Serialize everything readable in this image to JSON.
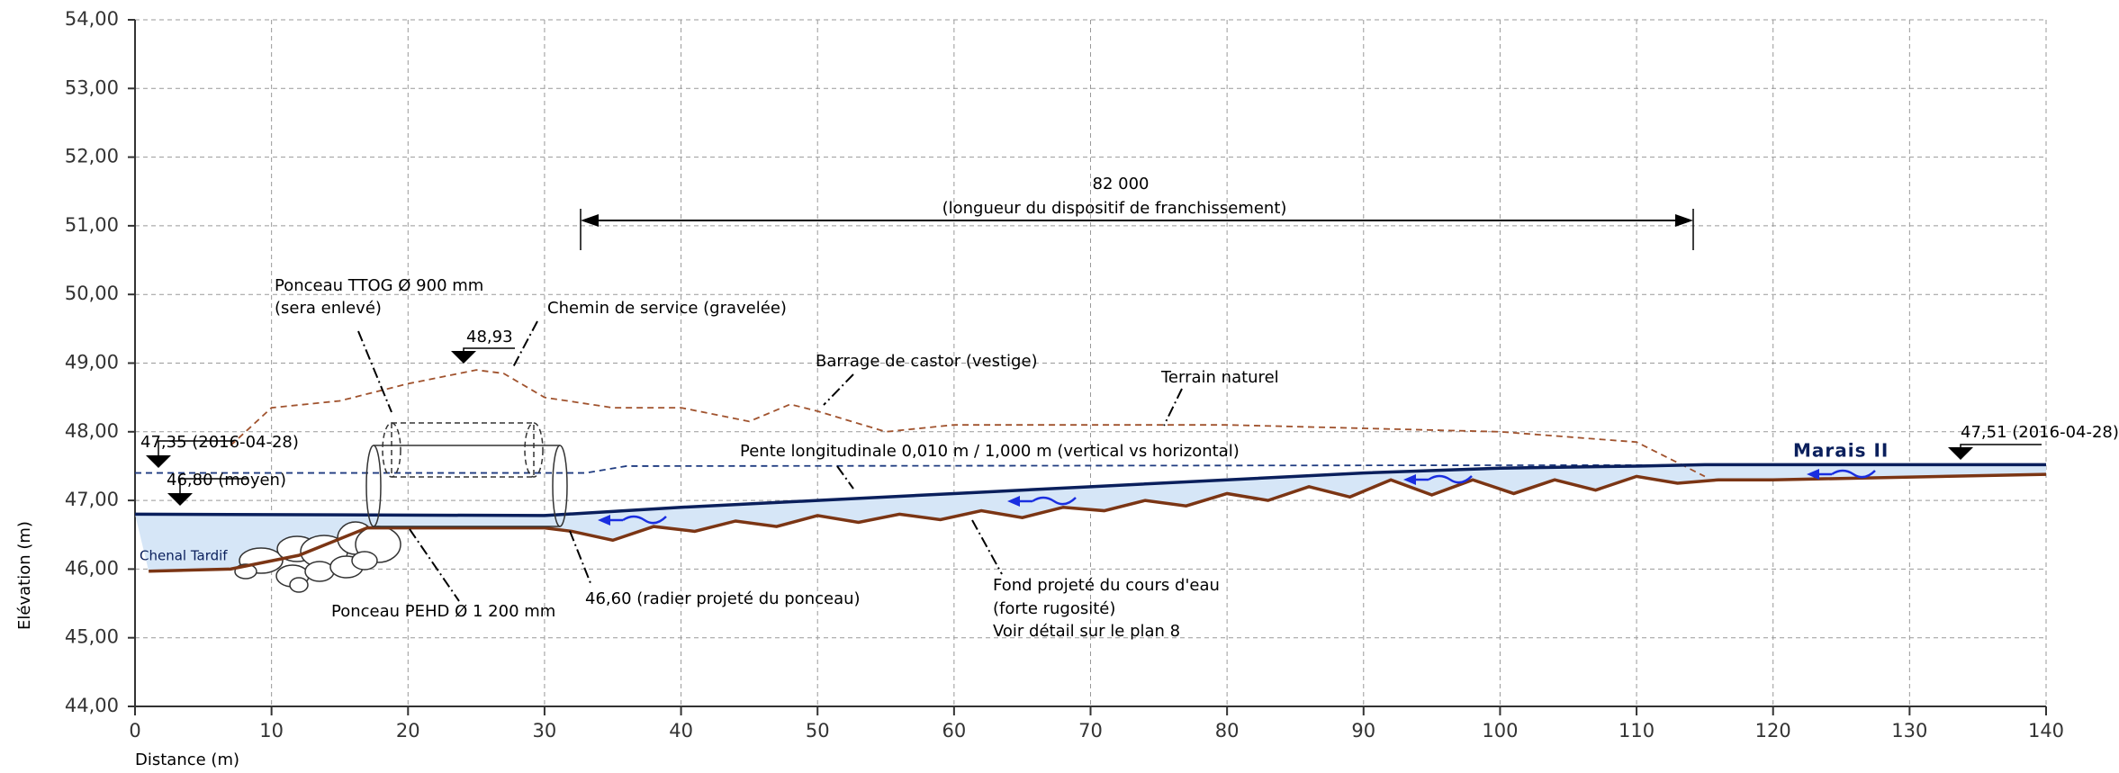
{
  "chart_data": {
    "type": "line",
    "xlabel": "Distance (m)",
    "ylabel": "Elévation (m)",
    "xlim": [
      0,
      140
    ],
    "ylim": [
      44,
      54
    ],
    "xticks": [
      0,
      10,
      20,
      30,
      40,
      50,
      60,
      70,
      80,
      90,
      100,
      110,
      120,
      130,
      140
    ],
    "yticks": [
      {
        "value": 44,
        "label": "44,00"
      },
      {
        "value": 45,
        "label": "45,00"
      },
      {
        "value": 46,
        "label": "46,00"
      },
      {
        "value": 47,
        "label": "47,00"
      },
      {
        "value": 48,
        "label": "48,00"
      },
      {
        "value": 49,
        "label": "49,00"
      },
      {
        "value": 50,
        "label": "50,00"
      },
      {
        "value": 51,
        "label": "51,00"
      },
      {
        "value": 52,
        "label": "52,00"
      },
      {
        "value": 53,
        "label": "53,00"
      },
      {
        "value": 54,
        "label": "54,00"
      }
    ],
    "grid": true,
    "series": [
      {
        "color": "#a0522d",
        "linestyle": "dashed",
        "x": [
          7,
          10,
          15,
          20,
          25,
          27,
          30,
          35,
          40,
          45,
          48,
          50,
          55,
          60,
          70,
          80,
          90,
          100,
          110,
          115
        ],
        "values": [
          47.8,
          48.35,
          48.45,
          48.7,
          48.9,
          48.85,
          48.5,
          48.35,
          48.35,
          48.15,
          48.4,
          48.3,
          48.0,
          48.1,
          48.1,
          48.1,
          48.05,
          48.0,
          47.85,
          47.35
        ]
      },
      {
        "color": "#1f3b80",
        "linestyle": "dashed",
        "x": [
          0,
          33,
          36,
          140
        ],
        "values": [
          47.4,
          47.4,
          47.5,
          47.52
        ]
      },
      {
        "color": "#0a1f5c",
        "linestyle": "solid",
        "x": [
          0,
          30,
          40,
          50,
          60,
          70,
          80,
          90,
          100,
          110,
          115,
          140
        ],
        "values": [
          46.8,
          46.78,
          46.9,
          47.0,
          47.1,
          47.2,
          47.3,
          47.4,
          47.47,
          47.5,
          47.52,
          47.52
        ]
      },
      {
        "color": "#7b3514",
        "linestyle": "solid",
        "x": [
          1,
          7,
          12,
          17,
          20,
          30,
          32,
          35,
          38,
          41,
          44,
          47,
          50,
          53,
          56,
          59,
          62,
          65,
          68,
          71,
          74,
          77,
          80,
          83,
          86,
          89,
          92,
          95,
          98,
          101,
          104,
          107,
          110,
          113,
          116,
          120,
          140
        ],
        "values": [
          45.97,
          46.0,
          46.2,
          46.6,
          46.6,
          46.6,
          46.55,
          46.42,
          46.62,
          46.55,
          46.7,
          46.62,
          46.78,
          46.68,
          46.8,
          46.72,
          46.85,
          46.75,
          46.9,
          46.85,
          47.0,
          46.92,
          47.1,
          47.0,
          47.2,
          47.05,
          47.3,
          47.08,
          47.3,
          47.1,
          47.3,
          47.15,
          47.35,
          47.25,
          47.3,
          47.3,
          47.38
        ]
      }
    ],
    "annotations": [
      "82 000",
      "(longueur du dispositif de franchissement)",
      "Ponceau TTOG Ø 900 mm",
      "(sera enlevé)",
      "Chemin de service (gravelée)",
      "48,93",
      "Barrage de castor (vestige)",
      "Terrain naturel",
      "47,35 (2016-04-28)",
      "46,80 (moyen)",
      "Pente longitudinale 0,010 m / 1,000 m (vertical vs horizontal)",
      "Marais II",
      "47,51 (2016-04-28)",
      "Chenal Tardif",
      "Ponceau PEHD Ø 1 200 mm",
      "46,60 (radier projeté du ponceau)",
      "Fond projeté du cours d'eau",
      "(forte rugosité)",
      "Voir détail sur le plan 8"
    ]
  }
}
